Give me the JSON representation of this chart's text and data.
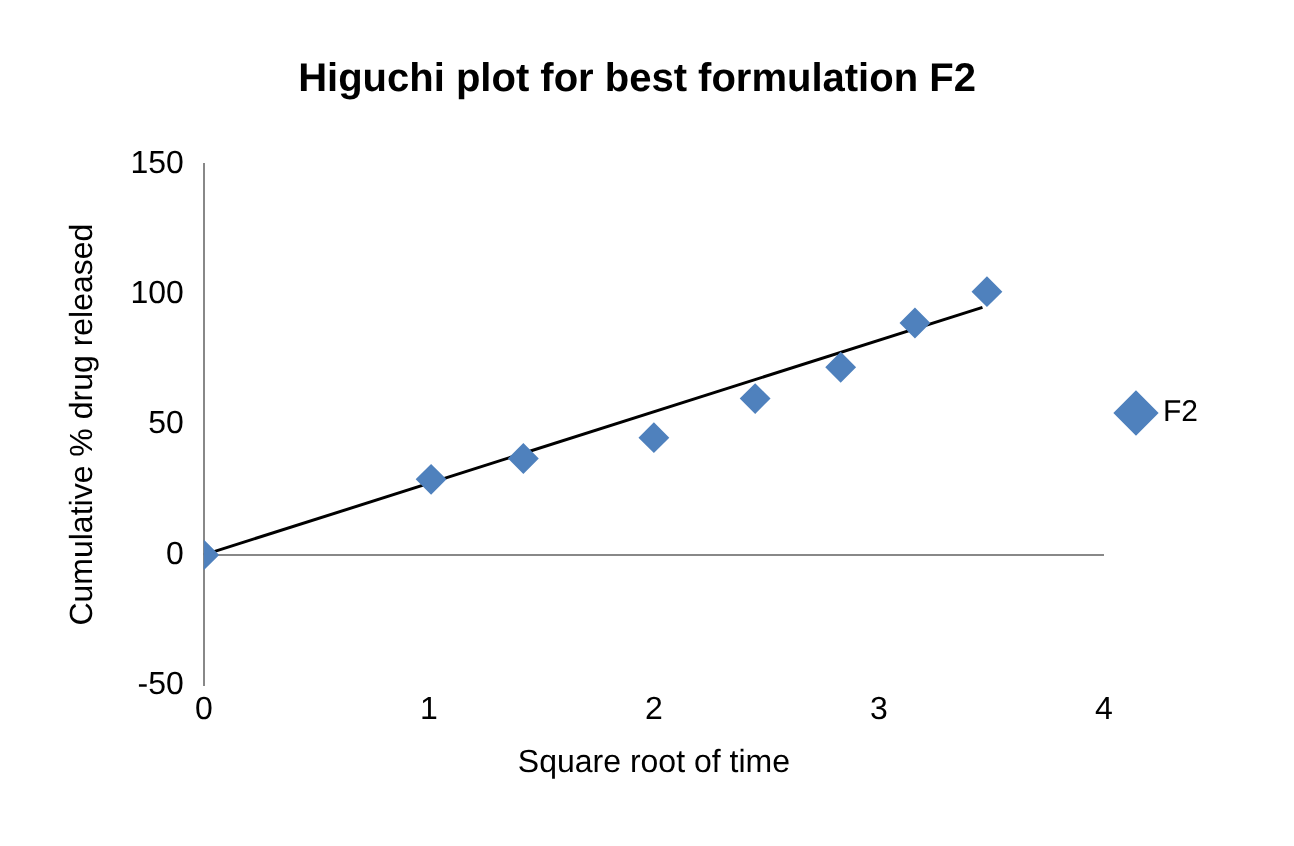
{
  "chart_data": {
    "type": "scatter",
    "title": "Higuchi plot for best formulation F2",
    "xlabel": "Square root of time",
    "ylabel": "Cumulative % drug released",
    "series": [
      {
        "name": "F2",
        "type": "scatter",
        "color": "#4f81bd",
        "marker": "diamond",
        "x": [
          0,
          1.01,
          1.42,
          2.0,
          2.45,
          2.83,
          3.16,
          3.48
        ],
        "values": [
          0,
          29,
          37,
          45,
          60,
          72,
          89,
          101
        ]
      },
      {
        "type": "line",
        "color": "#000000",
        "marker": "none",
        "line_style": "solid",
        "x": [
          0,
          3.46
        ],
        "values": [
          0,
          95
        ]
      }
    ],
    "xlim": [
      0,
      4
    ],
    "xticks": [
      0,
      1,
      2,
      3,
      4
    ],
    "ylim": [
      -50,
      150
    ],
    "yticks": [
      -50,
      0,
      50,
      100,
      150
    ],
    "ref_lines": [
      {
        "axis": "y",
        "value": 0,
        "color": "#888888"
      }
    ],
    "legend": "right"
  }
}
